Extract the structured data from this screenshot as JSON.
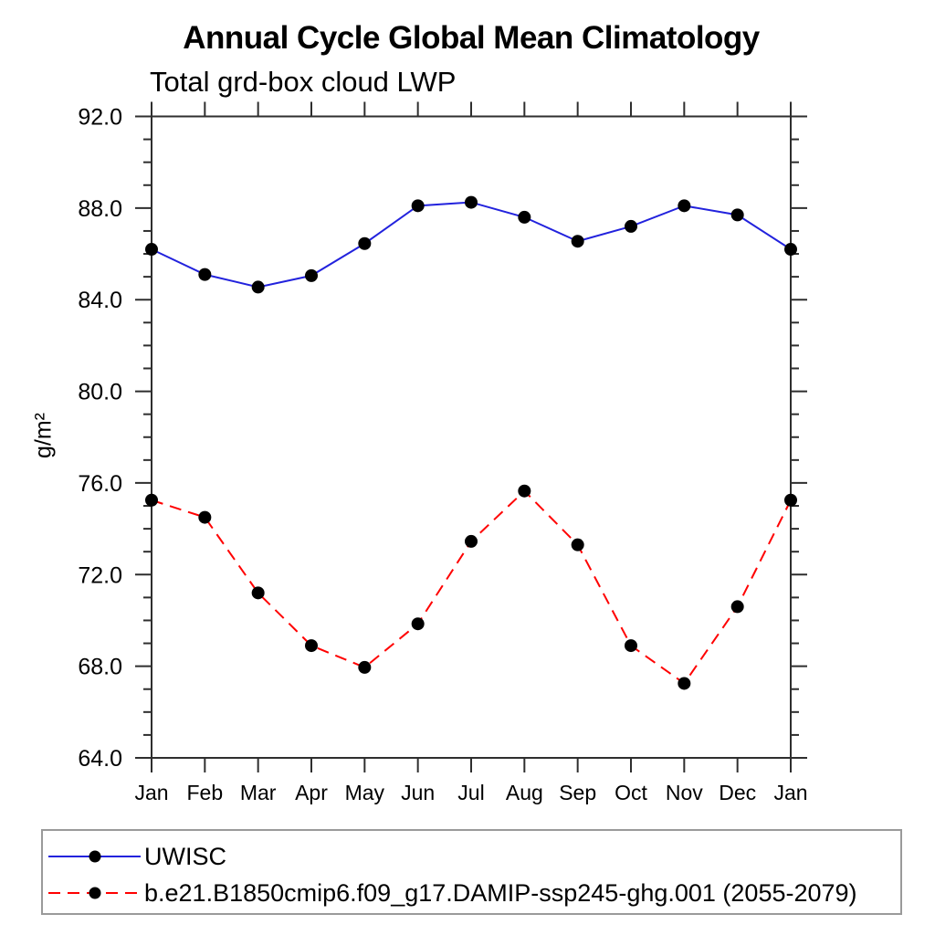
{
  "chart_data": {
    "type": "line",
    "title": "Annual Cycle Global Mean Climatology",
    "subtitle": "Total grd-box cloud LWP",
    "ylabel": "g/m²",
    "xlabel": "",
    "categories": [
      "Jan",
      "Feb",
      "Mar",
      "Apr",
      "May",
      "Jun",
      "Jul",
      "Aug",
      "Sep",
      "Oct",
      "Nov",
      "Dec",
      "Jan"
    ],
    "ylim": [
      64.0,
      92.0
    ],
    "ytick_values": [
      64,
      68,
      72,
      76,
      80,
      84,
      88,
      92
    ],
    "ytick_labels": [
      "64.0",
      "68.0",
      "72.0",
      "76.0",
      "80.0",
      "84.0",
      "88.0",
      "92.0"
    ],
    "ytick_minor_step": 1,
    "grid": false,
    "legend_position": "bottom-left-box",
    "frame_color": "#2e2e2e",
    "marker_color": "#000000",
    "series": [
      {
        "name": "UWISC",
        "color": "#2222dd",
        "line_style": "solid",
        "marker": "filled-circle",
        "values": [
          86.2,
          85.1,
          84.55,
          85.05,
          86.45,
          88.1,
          88.25,
          87.6,
          86.55,
          87.2,
          88.1,
          87.7,
          86.2
        ]
      },
      {
        "name": "b.e21.B1850cmip6.f09_g17.DAMIP-ssp245-ghg.001 (2055-2079)",
        "color": "#ff0000",
        "line_style": "dashed",
        "marker": "filled-circle",
        "values": [
          75.25,
          74.5,
          71.2,
          68.9,
          67.95,
          69.85,
          73.45,
          75.65,
          73.3,
          68.9,
          67.25,
          70.6,
          75.25
        ]
      }
    ]
  }
}
